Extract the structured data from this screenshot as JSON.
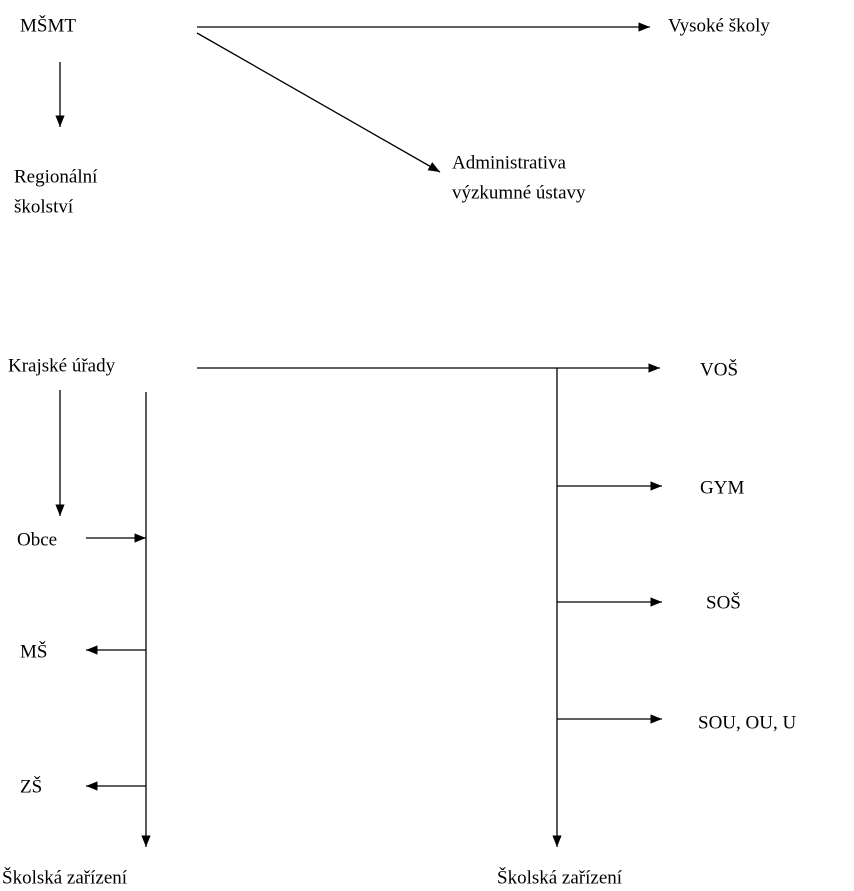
{
  "nodes": [
    {
      "label": "MŠMT"
    },
    {
      "label": "Vysoké školy"
    },
    {
      "label": "Administrativa"
    },
    {
      "label": "výzkumné ústavy"
    },
    {
      "label": "Regionální"
    },
    {
      "label": "školství"
    },
    {
      "label": "Krajské úřady"
    },
    {
      "label": "VOŠ"
    },
    {
      "label": "GYM"
    },
    {
      "label": "SOŠ"
    },
    {
      "label": "SOU, OU, U"
    },
    {
      "label": "Obce"
    },
    {
      "label": "MŠ"
    },
    {
      "label": "ZŠ"
    },
    {
      "label": "Školská zařízení"
    },
    {
      "label": "Školská zařízení"
    }
  ]
}
